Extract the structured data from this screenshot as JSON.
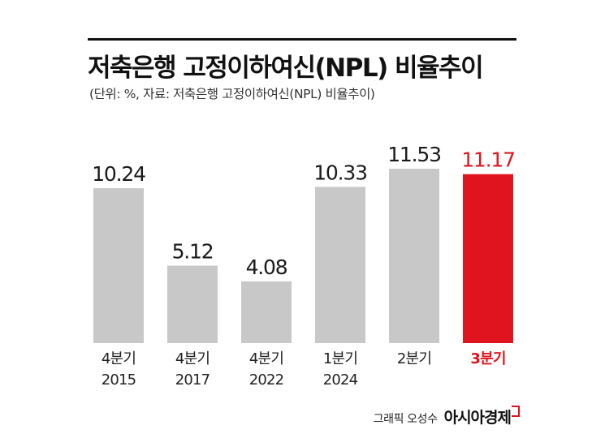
{
  "header": {
    "title": "저축은행 고정이하여신(NPL) 비율추이",
    "subtitle": "(단위: %, 자료: 저축은행 고정이하여신(NPL) 비율추이)"
  },
  "credit": {
    "graphic": "그래픽 오성수",
    "brand": "아시아경제"
  },
  "colors": {
    "bar_default": "#c8c8c8",
    "bar_highlight": "#e0141e",
    "label_default": "#1a1a1a",
    "label_highlight": "#e0141e"
  },
  "chart_data": {
    "type": "bar",
    "categories": [
      [
        "4분기",
        "2015"
      ],
      [
        "4분기",
        "2017"
      ],
      [
        "4분기",
        "2022"
      ],
      [
        "1분기",
        "2024"
      ],
      [
        "2분기"
      ],
      [
        "3분기"
      ]
    ],
    "values": [
      10.24,
      5.12,
      4.08,
      10.33,
      11.53,
      11.17
    ],
    "value_labels": [
      "10.24",
      "5.12",
      "4.08",
      "10.33",
      "11.53",
      "11.17"
    ],
    "highlight_index": 5,
    "ylim": [
      0,
      12.5
    ],
    "grid": false,
    "legend": "none"
  }
}
